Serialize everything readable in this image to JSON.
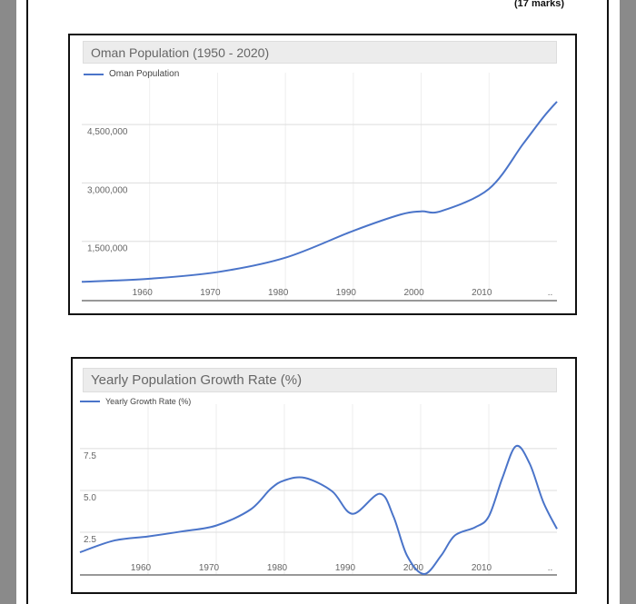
{
  "header": {
    "marks": "(17 marks)"
  },
  "colors": {
    "line": "#4a74c9",
    "grid": "#dddddd",
    "axis": "#777777",
    "titlebar": "#ececec"
  },
  "chart_data": [
    {
      "type": "line",
      "title": "Oman Population (1950 - 2020)",
      "legend": "top-left",
      "grid": true,
      "xlim": [
        1950,
        2020
      ],
      "ylim": [
        0,
        5250000
      ],
      "x_ticks": [
        "1960",
        "1970",
        "1980",
        "1990",
        "2000",
        "2010",
        ".."
      ],
      "y_ticks": [
        {
          "value": 1500000,
          "label": "1,500,000"
        },
        {
          "value": 3000000,
          "label": "3,000,000"
        },
        {
          "value": 4500000,
          "label": "4,500,000"
        }
      ],
      "series": [
        {
          "name": "Oman Population",
          "x": [
            1950,
            1960,
            1970,
            1980,
            1990,
            1997,
            2000,
            2003,
            2010,
            2015,
            2018,
            2020
          ],
          "y": [
            460000,
            540000,
            710000,
            1080000,
            1770000,
            2190000,
            2270000,
            2280000,
            2850000,
            4000000,
            4690000,
            5090000
          ]
        }
      ]
    },
    {
      "type": "line",
      "title": "Yearly Population Growth Rate (%)",
      "legend": "top-left",
      "grid": true,
      "xlim": [
        1950,
        2020
      ],
      "ylim": [
        0,
        8.8
      ],
      "x_ticks": [
        "1960",
        "1970",
        "1980",
        "1990",
        "2000",
        "2010",
        ".."
      ],
      "y_ticks": [
        {
          "value": 2.5,
          "label": "2.5"
        },
        {
          "value": 5.0,
          "label": "5.0"
        },
        {
          "value": 7.5,
          "label": "7.5"
        }
      ],
      "series": [
        {
          "name": "Yearly Growth Rate (%)",
          "x": [
            1950,
            1955,
            1960,
            1965,
            1970,
            1975,
            1978,
            1980,
            1983,
            1987,
            1990,
            1994,
            1996,
            1998,
            2000.5,
            2003,
            2005,
            2008,
            2010,
            2012,
            2014,
            2016,
            2018,
            2020
          ],
          "y": [
            1.3,
            2.0,
            2.25,
            2.55,
            2.9,
            3.85,
            5.1,
            5.6,
            5.75,
            4.95,
            3.6,
            4.8,
            3.45,
            1.1,
            0.0,
            1.1,
            2.3,
            2.8,
            3.45,
            5.75,
            7.65,
            6.6,
            4.3,
            2.7
          ]
        }
      ]
    }
  ]
}
